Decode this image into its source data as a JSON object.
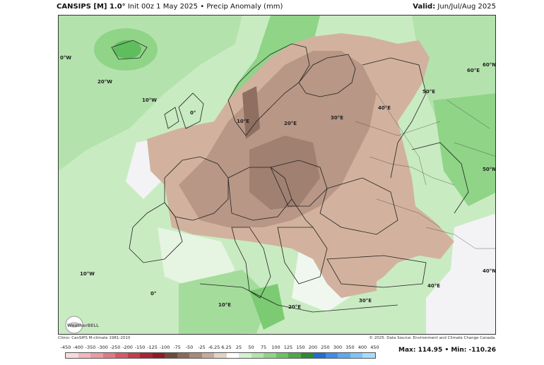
{
  "header": {
    "model": "CANSIPS [M] 1.0°",
    "init": "Init 00z 1 May 2025",
    "separator": "•",
    "product": "Precip Anomaly (mm)",
    "valid_label": "Valid:",
    "valid_value": "Jun/Jul/Aug 2025"
  },
  "map": {
    "lon_labels": [
      "0°W",
      "20°W",
      "10°W",
      "0°",
      "10°E",
      "20°E",
      "30°E",
      "40°E",
      "60°E",
      "60°N",
      "50°E",
      "50°N",
      "40°N",
      "10°W",
      "0°",
      "10°E",
      "20°E",
      "30°E",
      "40°E"
    ],
    "logo": "WeatherBELL"
  },
  "footer": {
    "climo": "Climo: CanSIPS M-climate 1981-2010",
    "source": "© 2025. Data Source: Environment and Climate Change Canada.",
    "max_label": "Max:",
    "max_value": "114.95",
    "min_label": "Min:",
    "min_value": "-110.26"
  },
  "colorbar": {
    "ticks": [
      "-450",
      "-400",
      "-350",
      "-300",
      "-250",
      "-200",
      "-150",
      "-125",
      "-100",
      "-75",
      "-50",
      "-25",
      "-6.25",
      "6.25",
      "25",
      "50",
      "75",
      "100",
      "125",
      "150",
      "200",
      "250",
      "300",
      "350",
      "400",
      "450"
    ],
    "colors": [
      "#f8d9dc",
      "#f1b7bd",
      "#e99aa2",
      "#e07a84",
      "#d65a66",
      "#c53d4a",
      "#a92633",
      "#8e1c27",
      "#6e4a3d",
      "#8c6a58",
      "#a9897a",
      "#c7ab9a",
      "#e3d2c6",
      "#ffffff",
      "#d6f0d2",
      "#b3e3ad",
      "#8fd487",
      "#6bc263",
      "#4ea84a",
      "#2f8a35",
      "#1f6fd1",
      "#3b8ee8",
      "#5ba9f1",
      "#7fc3f6",
      "#a6dbfa"
    ]
  }
}
